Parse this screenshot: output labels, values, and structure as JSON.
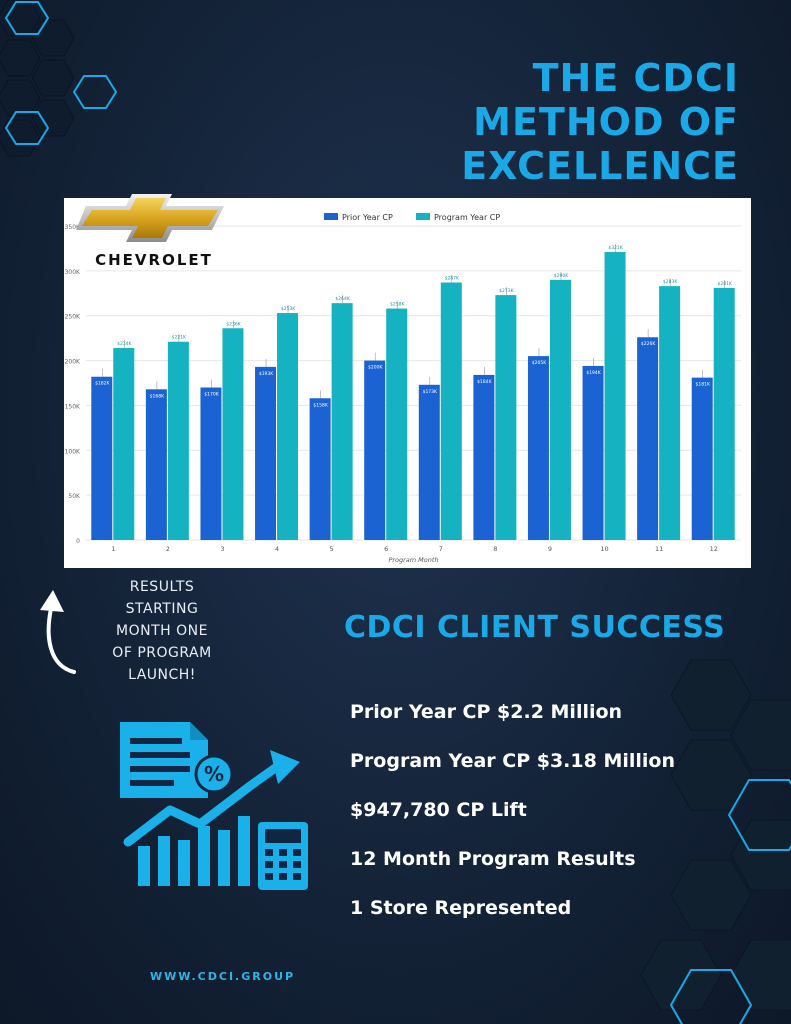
{
  "title_lines": [
    "THE CDCI",
    "METHOD OF",
    "EXCELLENCE"
  ],
  "logo_text": "CHEVROLET",
  "chart_data": {
    "type": "bar",
    "categories": [
      "1",
      "2",
      "3",
      "4",
      "5",
      "6",
      "7",
      "8",
      "9",
      "10",
      "11",
      "12"
    ],
    "series": [
      {
        "name": "Prior Year CP",
        "color": "#1b63d3",
        "values": [
          182,
          168,
          170,
          193,
          158,
          200,
          173,
          184,
          205,
          194,
          226,
          181
        ]
      },
      {
        "name": "Program Year CP",
        "color": "#15b3c2",
        "values": [
          214,
          221,
          236,
          253,
          264,
          258,
          287,
          273,
          290,
          321,
          283,
          281
        ]
      }
    ],
    "yticks": [
      "0",
      "50K",
      "100K",
      "150K",
      "200K",
      "250K",
      "300K",
      "350K"
    ],
    "ylim": [
      0,
      350
    ],
    "xlabel": "Program Month",
    "ylabel": "",
    "legend_position": "top"
  },
  "callout_lines": [
    "RESULTS",
    "STARTING",
    "MONTH ONE",
    "OF PROGRAM",
    "LAUNCH!"
  ],
  "success_heading": "CDCI CLIENT SUCCESS",
  "stats": [
    "Prior Year CP $2.2 Million",
    "Program Year CP $3.18 Million",
    "$947,780 CP Lift",
    "12 Month Program Results",
    "1 Store Represented"
  ],
  "footer": "WWW.CDCI.GROUP",
  "icons": [
    "hexagon-pattern",
    "chevrolet-bowtie-logo",
    "curved-arrow-icon",
    "report-growth-icon",
    "calculator-icon"
  ],
  "accent_color": "#1aa8e6"
}
